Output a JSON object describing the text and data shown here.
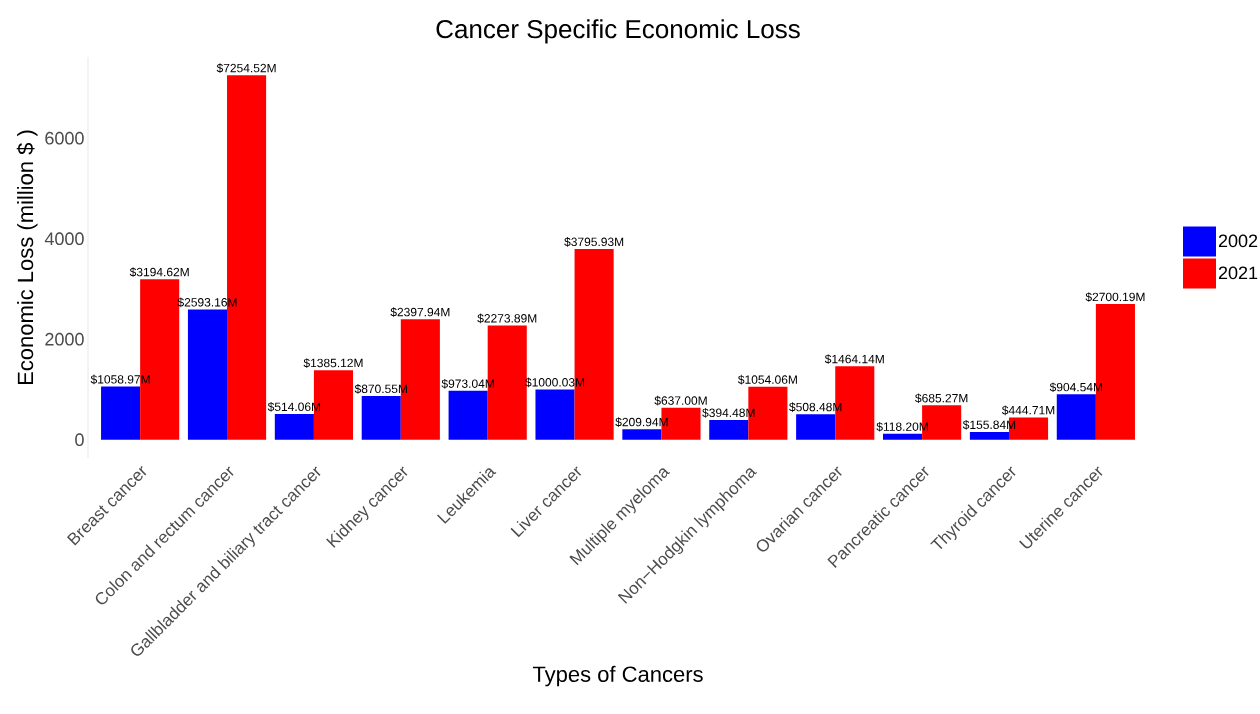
{
  "chart_data": {
    "type": "bar",
    "title": "Cancer Specific Economic Loss",
    "xlabel": "Types of Cancers",
    "ylabel": "Economic Loss (million $ )",
    "categories": [
      "Breast cancer",
      "Colon and rectum cancer",
      "Gallbladder and biliary tract cancer",
      "Kidney cancer",
      "Leukemia",
      "Liver cancer",
      "Multiple myeloma",
      "Non−Hodgkin lymphoma",
      "Ovarian cancer",
      "Pancreatic cancer",
      "Thyroid cancer",
      "Uterine cancer"
    ],
    "series": [
      {
        "name": "2002",
        "color": "#0000ff",
        "values": [
          1058.97,
          2593.16,
          514.06,
          870.55,
          973.04,
          1000.03,
          209.94,
          394.48,
          508.48,
          118.2,
          155.84,
          904.54
        ],
        "value_labels": [
          "$1058.97M",
          "$2593.16M",
          "$514.06M",
          "$870.55M",
          "$973.04M",
          "$1000.03M",
          "$209.94M",
          "$394.48M",
          "$508.48M",
          "$118.20M",
          "$155.84M",
          "$904.54M"
        ]
      },
      {
        "name": "2021",
        "color": "#ff0000",
        "values": [
          3194.62,
          7254.52,
          1385.12,
          2397.94,
          2273.89,
          3795.93,
          637.0,
          1054.06,
          1464.14,
          685.27,
          444.71,
          2700.19
        ],
        "value_labels": [
          "$3194.62M",
          "$7254.52M",
          "$1385.12M",
          "$2397.94M",
          "$2273.89M",
          "$3795.93M",
          "$637.00M",
          "$1054.06M",
          "$1464.14M",
          "$685.27M",
          "$444.71M",
          "$2700.19M"
        ]
      }
    ],
    "ylim": [
      -363,
      7617
    ],
    "yticks": [
      0,
      2000,
      4000,
      6000
    ],
    "legend": "right"
  }
}
